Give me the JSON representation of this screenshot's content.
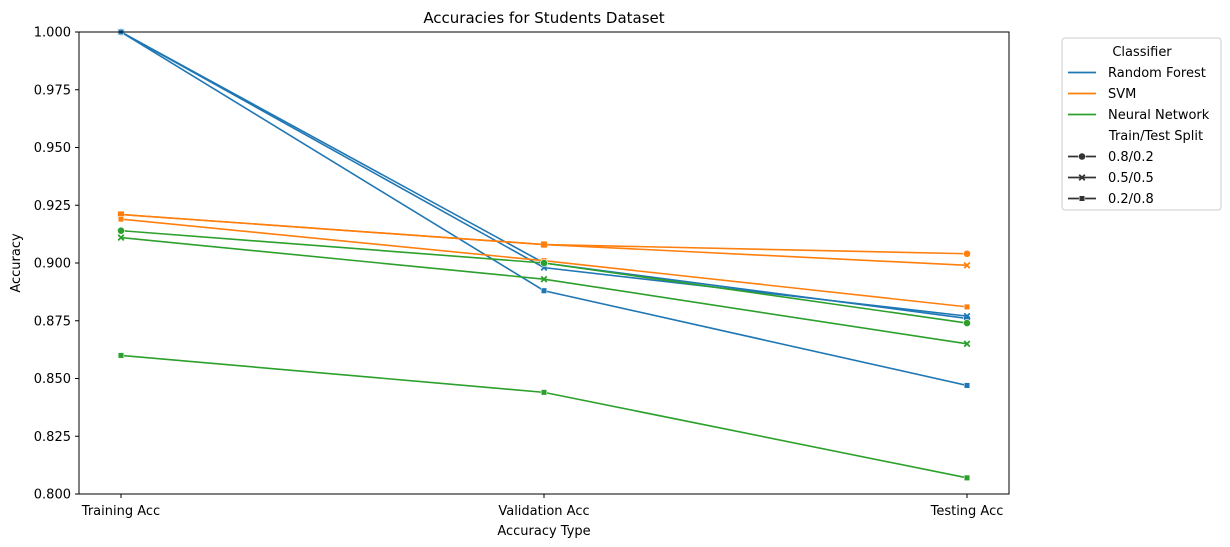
{
  "chart_data": {
    "type": "line",
    "title": "Accuracies for Students Dataset",
    "xlabel": "Accuracy Type",
    "ylabel": "Accuracy",
    "categories": [
      "Training Acc",
      "Validation Acc",
      "Testing Acc"
    ],
    "ylim": [
      0.8,
      1.0
    ],
    "yticks": [
      "0.800",
      "0.825",
      "0.850",
      "0.875",
      "0.900",
      "0.925",
      "0.950",
      "0.975",
      "1.000"
    ],
    "grid": false,
    "legend_position": "outside-top-right",
    "legend": {
      "hue_title": "Classifier",
      "style_title": "Train/Test Split",
      "classifiers": [
        {
          "name": "Random Forest",
          "color": "#1f77b4"
        },
        {
          "name": "SVM",
          "color": "#ff7f0e"
        },
        {
          "name": "Neural Network",
          "color": "#2ca02c"
        }
      ],
      "splits": [
        {
          "name": "0.8/0.2",
          "marker": "circle"
        },
        {
          "name": "0.5/0.5",
          "marker": "x"
        },
        {
          "name": "0.2/0.8",
          "marker": "square"
        }
      ]
    },
    "series": [
      {
        "classifier": "Random Forest",
        "split": "0.8/0.2",
        "color": "#1f77b4",
        "marker": "circle",
        "values": [
          1.0,
          0.9,
          0.876
        ]
      },
      {
        "classifier": "Random Forest",
        "split": "0.5/0.5",
        "color": "#1f77b4",
        "marker": "x",
        "values": [
          1.0,
          0.898,
          0.877
        ]
      },
      {
        "classifier": "Random Forest",
        "split": "0.2/0.8",
        "color": "#1f77b4",
        "marker": "square",
        "values": [
          1.0,
          0.888,
          0.847
        ]
      },
      {
        "classifier": "SVM",
        "split": "0.8/0.2",
        "color": "#ff7f0e",
        "marker": "circle",
        "values": [
          0.921,
          0.908,
          0.904
        ]
      },
      {
        "classifier": "SVM",
        "split": "0.5/0.5",
        "color": "#ff7f0e",
        "marker": "x",
        "values": [
          0.921,
          0.908,
          0.899
        ]
      },
      {
        "classifier": "SVM",
        "split": "0.2/0.8",
        "color": "#ff7f0e",
        "marker": "square",
        "values": [
          0.919,
          0.901,
          0.881
        ]
      },
      {
        "classifier": "Neural Network",
        "split": "0.8/0.2",
        "color": "#2ca02c",
        "marker": "circle",
        "values": [
          0.914,
          0.9,
          0.874
        ]
      },
      {
        "classifier": "Neural Network",
        "split": "0.5/0.5",
        "color": "#2ca02c",
        "marker": "x",
        "values": [
          0.911,
          0.893,
          0.865
        ]
      },
      {
        "classifier": "Neural Network",
        "split": "0.2/0.8",
        "color": "#2ca02c",
        "marker": "square",
        "values": [
          0.86,
          0.844,
          0.807
        ]
      }
    ]
  }
}
